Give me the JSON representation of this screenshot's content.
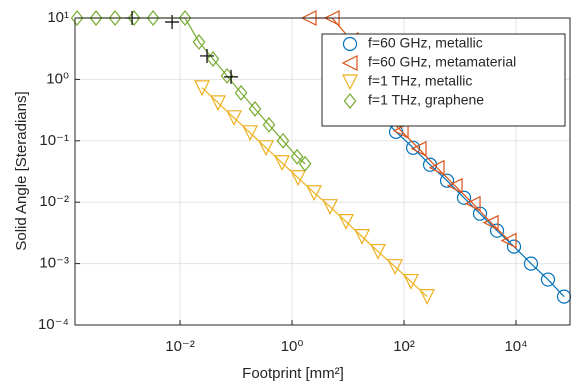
{
  "chart_data": {
    "type": "line",
    "x_label": "Footprint [mm²]",
    "y_label": "Solid Angle [Steradians]",
    "xscale": "log",
    "yscale": "log",
    "grid": true,
    "legend": "upper right",
    "xlim": [
      0.000133,
      92000
    ],
    "ylim": [
      0.0001,
      10
    ],
    "xticks": [
      {
        "value": 0.01,
        "label": "10⁻²"
      },
      {
        "value": 1,
        "label": "10⁰"
      },
      {
        "value": 100,
        "label": "10²"
      },
      {
        "value": 10000,
        "label": "10⁴"
      }
    ],
    "yticks": [
      {
        "value": 0.0001,
        "label": "10⁻⁴"
      },
      {
        "value": 0.001,
        "label": "10⁻³"
      },
      {
        "value": 0.01,
        "label": "10⁻²"
      },
      {
        "value": 0.1,
        "label": "10⁻¹"
      },
      {
        "value": 1,
        "label": "10⁰"
      },
      {
        "value": 10,
        "label": "10¹"
      }
    ],
    "series": [
      {
        "name": "f=60 GHz, metallic",
        "color": "#0072bd",
        "marker": "o",
        "x": [
          35.8,
          72,
          145,
          291,
          586,
          1178,
          2275,
          4580,
          9200,
          18500,
          37200,
          72000
        ],
        "values": [
          0.265,
          0.14,
          0.0769,
          0.0407,
          0.0224,
          0.0118,
          0.0065,
          0.00344,
          0.00189,
          0.001,
          0.00055,
          0.00029
        ]
      },
      {
        "name": "f=60 GHz, metamaterial",
        "color": "#d95319",
        "marker": "<",
        "x": [
          2.01,
          5.18,
          11.3,
          42.2,
          88.4,
          185,
          388,
          814,
          1706,
          3580,
          7500
        ],
        "values": [
          10,
          10,
          4.39,
          0.285,
          0.1456,
          0.0741,
          0.0364,
          0.0185,
          0.00946,
          0.00464,
          0.00237
        ]
      },
      {
        "name": "f=1 THz, metallic",
        "color": "#edb120",
        "marker": "v",
        "x": [
          0.0247,
          0.0477,
          0.0921,
          0.178,
          0.343,
          0.662,
          1.28,
          2.47,
          4.77,
          9.2,
          17.8,
          34.3,
          69,
          133,
          258
        ],
        "values": [
          0.728,
          0.415,
          0.237,
          0.135,
          0.0769,
          0.0439,
          0.025,
          0.01426,
          0.00845,
          0.00482,
          0.00275,
          0.00157,
          0.00089,
          0.00051,
          0.00029
        ]
      },
      {
        "name": "f=1 THz, graphene",
        "color": "#77ac30",
        "marker": "d",
        "x": [
          0.000145,
          0.000316,
          0.00069,
          0.00151,
          0.0033,
          0.01227,
          0.0218,
          0.0388,
          0.069,
          0.123,
          0.218,
          0.388,
          0.69,
          1.23,
          1.71
        ],
        "values": [
          10,
          10,
          10,
          10,
          10,
          10,
          4.07,
          2.15,
          1.14,
          0.603,
          0.331,
          0.182,
          0.1,
          0.055,
          0.0423
        ]
      },
      {
        "color": "#000000",
        "marker": "+",
        "line": false,
        "x": [
          0.00139,
          0.0072,
          0.0303,
          0.0815
        ],
        "values": [
          10,
          8.6,
          2.41,
          1.1
        ]
      }
    ]
  }
}
